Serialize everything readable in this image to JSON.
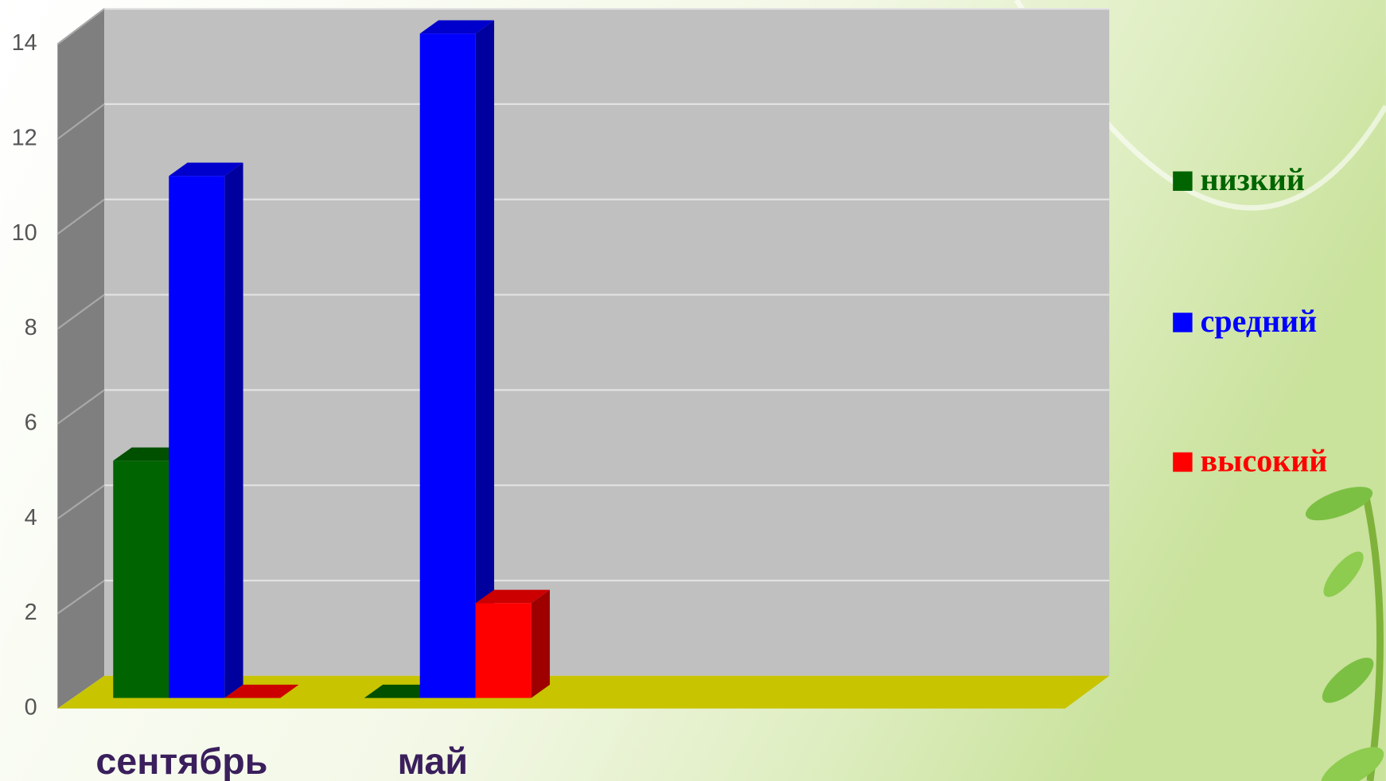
{
  "chart_data": {
    "type": "bar3d",
    "categories": [
      "сентябрь",
      "май"
    ],
    "series": [
      {
        "name": "низкий",
        "color": "#006400",
        "values": [
          5,
          0
        ]
      },
      {
        "name": "средний",
        "color": "#0000ff",
        "values": [
          11,
          14
        ]
      },
      {
        "name": "высокий",
        "color": "#ff0000",
        "values": [
          0,
          2
        ]
      }
    ],
    "ylim": [
      0,
      14
    ],
    "yticks": [
      0,
      2,
      4,
      6,
      8,
      10,
      12,
      14
    ],
    "grid": true,
    "legend": "right"
  }
}
